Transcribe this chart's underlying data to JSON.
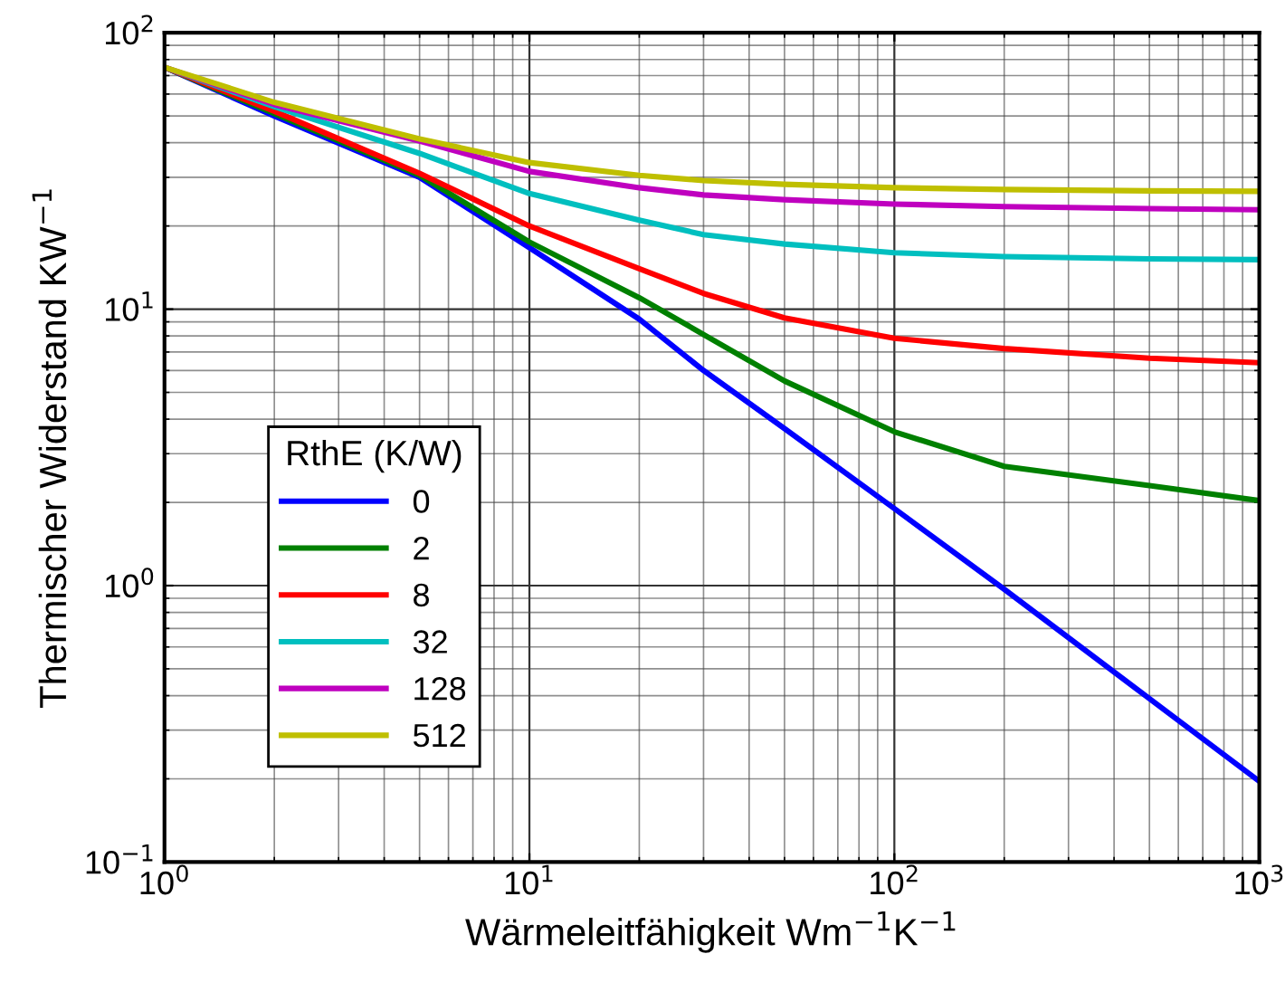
{
  "chart_data": {
    "type": "line",
    "xlabel": "Wärmeleitfähigkeit Wm$^{−1}$K$^{−1}$",
    "ylabel": "Thermischer Widerstand KW$^{−1}$",
    "legend_title": "RthE (K/W)",
    "log": "xy",
    "grid": true,
    "legend": "left",
    "line_style": "solid",
    "marker": "none",
    "x": [
      1,
      2,
      5,
      10,
      20,
      30,
      50,
      100,
      200,
      500,
      1000
    ],
    "xlim": [
      1,
      1000
    ],
    "ylim": [
      0.1,
      100
    ],
    "xticks": [
      {
        "value": 1,
        "label": "10$^{0}$"
      },
      {
        "value": 10,
        "label": "10$^{1}$"
      },
      {
        "value": 100,
        "label": "10$^{2}$"
      },
      {
        "value": 1000,
        "label": "10$^{3}$"
      }
    ],
    "yticks": [
      {
        "value": 0.1,
        "label": "10$^{−1}$"
      },
      {
        "value": 1,
        "label": "10$^{0}$"
      },
      {
        "value": 10,
        "label": "10$^{1}$"
      },
      {
        "value": 100,
        "label": "10$^{2}$"
      }
    ],
    "series": [
      {
        "name": "0",
        "color": "#0000ff",
        "values": [
          75,
          50,
          30,
          16.7,
          9.2,
          6.0,
          3.7,
          1.9,
          0.97,
          0.39,
          0.196
        ]
      },
      {
        "name": "2",
        "color": "#008000",
        "values": [
          75,
          51,
          30.5,
          17.5,
          11,
          8.1,
          5.5,
          3.6,
          2.7,
          2.3,
          2.03
        ]
      },
      {
        "name": "8",
        "color": "#ff0000",
        "values": [
          75,
          52,
          31,
          20,
          14,
          11.4,
          9.3,
          7.85,
          7.2,
          6.65,
          6.4
        ]
      },
      {
        "name": "32",
        "color": "#00bfbf",
        "values": [
          75,
          54,
          36.6,
          26.2,
          21,
          18.6,
          17.2,
          16,
          15.5,
          15.2,
          15.1
        ]
      },
      {
        "name": "128",
        "color": "#bf00bf",
        "values": [
          75,
          55,
          40.6,
          31.5,
          27.5,
          25.9,
          24.9,
          24,
          23.5,
          23.1,
          22.9
        ]
      },
      {
        "name": "512",
        "color": "#bfbf00",
        "values": [
          75,
          56,
          41.3,
          33.9,
          30.5,
          29.2,
          28.3,
          27.5,
          27.1,
          26.8,
          26.7
        ]
      }
    ]
  }
}
